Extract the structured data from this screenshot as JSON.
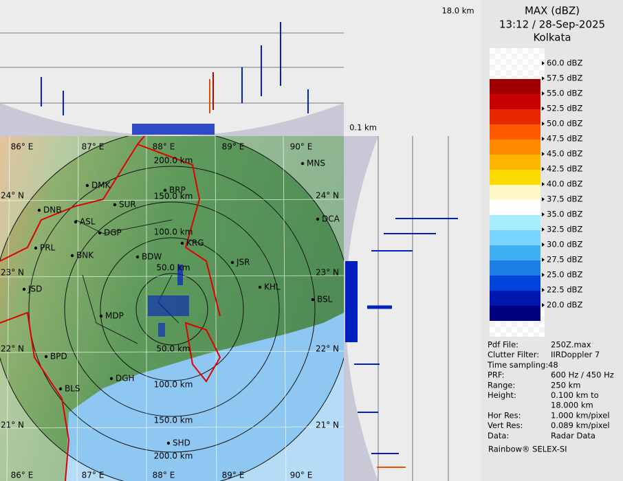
{
  "header": {
    "title": "MAX (dBZ)",
    "datetime": "13:12 / 28-Sep-2025",
    "station": "Kolkata"
  },
  "legend": {
    "labels": [
      "60.0 dBZ",
      "57.5 dBZ",
      "55.0 dBZ",
      "52.5 dBZ",
      "50.0 dBZ",
      "47.5 dBZ",
      "45.0 dBZ",
      "42.5 dBZ",
      "40.0 dBZ",
      "37.5 dBZ",
      "35.0 dBZ",
      "32.5 dBZ",
      "30.0 dBZ",
      "27.5 dBZ",
      "25.0 dBZ",
      "22.5 dBZ",
      "20.0 dBZ"
    ],
    "colors": [
      "#a00000",
      "#c80000",
      "#e82800",
      "#ff5a00",
      "#ff8a00",
      "#ffb400",
      "#ffdc00",
      "#fff8c8",
      "#ffffff",
      "#a8ecff",
      "#78d4ff",
      "#40b0f0",
      "#1e7ee8",
      "#0044dc",
      "#0018b0",
      "#000080"
    ]
  },
  "info": {
    "rows": [
      {
        "label": "Pdf File:",
        "value": [
          "250Z.max"
        ]
      },
      {
        "label": "Clutter Filter:",
        "value": [
          "IIRDoppler 7"
        ]
      },
      {
        "label": "Time sampling:",
        "value": [
          "48"
        ]
      },
      {
        "label": "PRF:",
        "value": [
          "600 Hz / 450 Hz"
        ]
      },
      {
        "label": "Range:",
        "value": [
          "250 km"
        ]
      },
      {
        "label": "Height:",
        "value": [
          "0.100 km to",
          "18.000 km"
        ]
      },
      {
        "label": "Hor Res:",
        "value": [
          "1.000 km/pixel"
        ]
      },
      {
        "label": "Vert Res:",
        "value": [
          "0.089 km/pixel"
        ]
      },
      {
        "label": "Data:",
        "value": [
          "Radar Data"
        ]
      }
    ],
    "footer": "Rainbow® SELEX-SI"
  },
  "map": {
    "cities": [
      "MNS",
      "BRP",
      "DMK",
      "SUR",
      "DNB",
      "ASL",
      "DGP",
      "KRG",
      "DCA",
      "PRL",
      "BNK",
      "BDW",
      "JSR",
      "KHL",
      "JSD",
      "BSL",
      "MDP",
      "BPD",
      "DGH",
      "BLS",
      "SHD"
    ],
    "range_labels": [
      "50.0 km",
      "100.0 km",
      "150.0 km",
      "200.0 km"
    ],
    "lon_labels": [
      "86° E",
      "87° E",
      "88° E",
      "89° E",
      "90° E"
    ],
    "lat_labels": [
      "24° N",
      "23° N",
      "22° N",
      "21° N"
    ]
  },
  "profile": {
    "top_height": "18.0 km",
    "bottom_height": "0.1 km"
  }
}
